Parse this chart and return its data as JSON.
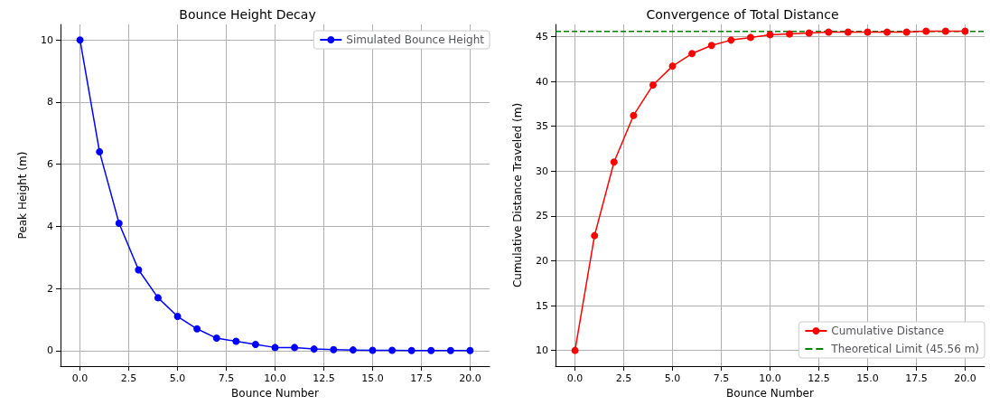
{
  "chart_data": [
    {
      "type": "line",
      "title": "Bounce Height Decay",
      "xlabel": "Bounce Number",
      "ylabel": "Peak Height (m)",
      "x": [
        0,
        1,
        2,
        3,
        4,
        5,
        6,
        7,
        8,
        9,
        10,
        11,
        12,
        13,
        14,
        15,
        16,
        17,
        18,
        19,
        20
      ],
      "series": [
        {
          "name": "Simulated Bounce Height",
          "color": "#0000ff",
          "values": [
            10,
            6.4,
            4.1,
            2.6,
            1.7,
            1.1,
            0.7,
            0.4,
            0.3,
            0.2,
            0.1,
            0.1,
            0.05,
            0.03,
            0.02,
            0.01,
            0.01,
            0,
            0,
            0,
            0
          ]
        }
      ],
      "xlim": [
        -1,
        21
      ],
      "xticks": [
        {
          "value": 0,
          "label": "0.0"
        },
        {
          "value": 2.5,
          "label": "2.5"
        },
        {
          "value": 5,
          "label": "5.0"
        },
        {
          "value": 7.5,
          "label": "7.5"
        },
        {
          "value": 10,
          "label": "10.0"
        },
        {
          "value": 12.5,
          "label": "12.5"
        },
        {
          "value": 15,
          "label": "15.0"
        },
        {
          "value": 17.5,
          "label": "17.5"
        },
        {
          "value": 20,
          "label": "20.0"
        }
      ],
      "ylim": [
        -0.5,
        10.5
      ],
      "yticks": [
        0,
        2,
        4,
        6,
        8,
        10
      ],
      "grid": true,
      "legend": "top right",
      "marker": "circle",
      "line_style": "solid"
    },
    {
      "type": "line",
      "title": "Convergence of Total Distance",
      "xlabel": "Bounce Number",
      "ylabel": "Cumulative Distance Traveled (m)",
      "x": [
        0,
        1,
        2,
        3,
        4,
        5,
        6,
        7,
        8,
        9,
        10,
        11,
        12,
        13,
        14,
        15,
        16,
        17,
        18,
        19,
        20
      ],
      "series": [
        {
          "name": "Cumulative Distance",
          "color": "#ff0000",
          "values": [
            10,
            22.8,
            31.0,
            36.2,
            39.6,
            41.7,
            43.1,
            44.0,
            44.6,
            44.9,
            45.2,
            45.3,
            45.4,
            45.5,
            45.5,
            45.5,
            45.5,
            45.5,
            45.6,
            45.6,
            45.6
          ]
        }
      ],
      "ref_lines": [
        {
          "axis": "y",
          "value": 45.56,
          "label": "Theoretical Limit (45.56 m)",
          "color": "#008000",
          "line_style": "dashed"
        }
      ],
      "xlim": [
        -1,
        21
      ],
      "xticks": [
        {
          "value": 0,
          "label": "0.0"
        },
        {
          "value": 2.5,
          "label": "2.5"
        },
        {
          "value": 5,
          "label": "5.0"
        },
        {
          "value": 7.5,
          "label": "7.5"
        },
        {
          "value": 10,
          "label": "10.0"
        },
        {
          "value": 12.5,
          "label": "12.5"
        },
        {
          "value": 15,
          "label": "15.0"
        },
        {
          "value": 17.5,
          "label": "17.5"
        },
        {
          "value": 20,
          "label": "20.0"
        }
      ],
      "ylim": [
        8.25,
        46.35
      ],
      "yticks": [
        10,
        15,
        20,
        25,
        30,
        35,
        40,
        45
      ],
      "grid": true,
      "legend": "bottom right",
      "marker": "circle",
      "line_style": "solid"
    }
  ]
}
